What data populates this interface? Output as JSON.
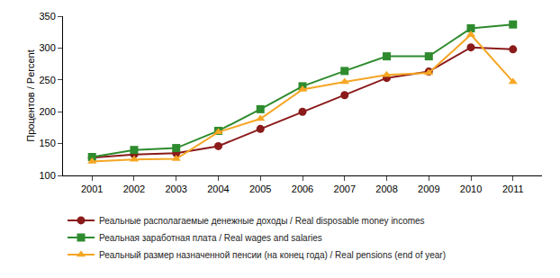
{
  "chart_data": {
    "type": "line",
    "y_label": "Процентов / Percent",
    "categories": [
      "2001",
      "2002",
      "2003",
      "2004",
      "2005",
      "2006",
      "2007",
      "2008",
      "2009",
      "2010",
      "2011"
    ],
    "series": [
      {
        "name": "Реальные располагаемые денежные доходы / Real disposable money incomes",
        "color": "#8b1a1a",
        "marker": "circle",
        "values": [
          128,
          133,
          135,
          146,
          173,
          200,
          226,
          253,
          263,
          301,
          298
        ]
      },
      {
        "name": "Реальная заработная плата / Real wages and salaries",
        "color": "#2e8b2e",
        "marker": "square",
        "values": [
          129,
          140,
          143,
          170,
          204,
          240,
          264,
          287,
          287,
          331,
          337
        ]
      },
      {
        "name": "Реальный размер назначенной пенсии (на конец года) / Real pensions (end of year)",
        "color": "#f5a623",
        "marker": "triangle-up",
        "values": [
          122,
          125,
          126,
          168,
          189,
          235,
          247,
          258,
          261,
          321,
          247
        ]
      }
    ],
    "ylim": [
      100,
      350
    ],
    "yticks": [
      100,
      150,
      200,
      250,
      300,
      350
    ],
    "grid": false,
    "legend": "bottom"
  }
}
